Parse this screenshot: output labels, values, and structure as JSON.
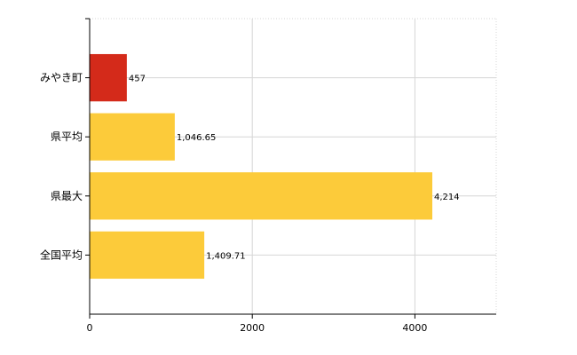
{
  "chart_data": {
    "type": "bar",
    "orientation": "horizontal",
    "categories": [
      "みやき町",
      "県平均",
      "県最大",
      "全国平均"
    ],
    "values": [
      457,
      1046.65,
      4214,
      1409.71
    ],
    "value_labels": [
      "457",
      "1,046.65",
      "4,214",
      "1,409.71"
    ],
    "x_ticks": [
      0,
      2000,
      4000
    ],
    "x_tick_labels": [
      "0",
      "2000",
      "4000"
    ],
    "xlim": [
      0,
      5000
    ],
    "grid": true,
    "title": "",
    "xlabel": "",
    "ylabel": "",
    "colors": {
      "highlight": "#d42a1a",
      "default": "#fccb3a",
      "grid": "#d6d6d6",
      "axis": "#000000"
    },
    "highlight_index": 0
  }
}
